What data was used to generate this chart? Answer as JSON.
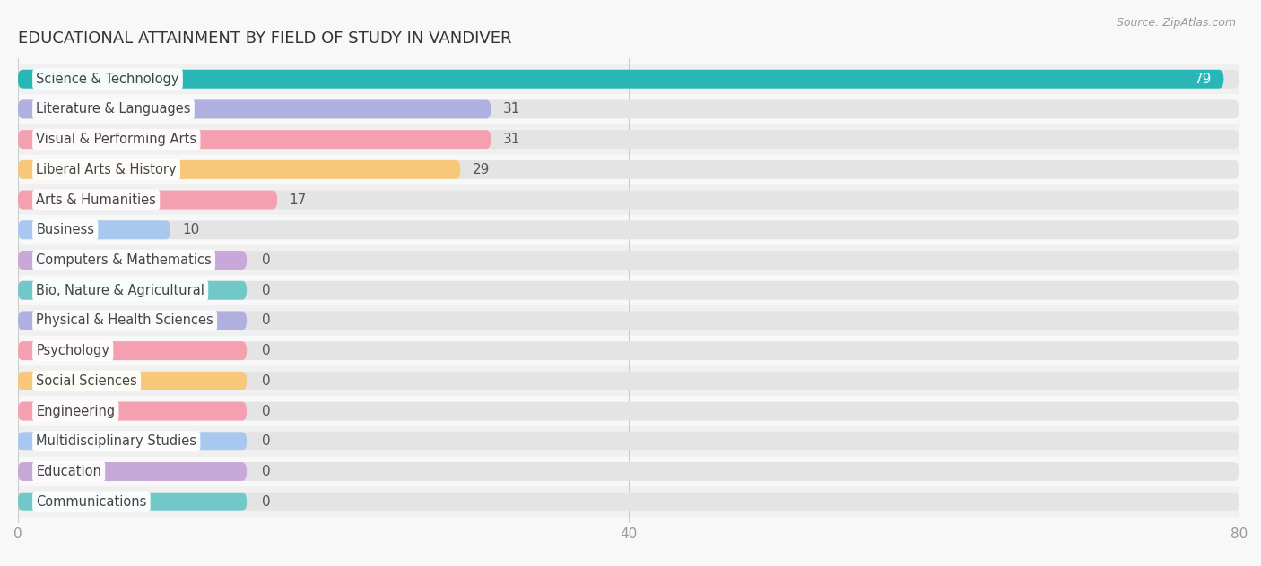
{
  "title": "EDUCATIONAL ATTAINMENT BY FIELD OF STUDY IN VANDIVER",
  "source": "Source: ZipAtlas.com",
  "categories": [
    "Science & Technology",
    "Literature & Languages",
    "Visual & Performing Arts",
    "Liberal Arts & History",
    "Arts & Humanities",
    "Business",
    "Computers & Mathematics",
    "Bio, Nature & Agricultural",
    "Physical & Health Sciences",
    "Psychology",
    "Social Sciences",
    "Engineering",
    "Multidisciplinary Studies",
    "Education",
    "Communications"
  ],
  "values": [
    79,
    31,
    31,
    29,
    17,
    10,
    0,
    0,
    0,
    0,
    0,
    0,
    0,
    0,
    0
  ],
  "bar_colors": [
    "#29b6b6",
    "#b0b0e0",
    "#f4a0b0",
    "#f8c87a",
    "#f4a0b0",
    "#a8c8f0",
    "#c8a8d8",
    "#70c8c8",
    "#b0b0e0",
    "#f4a0b0",
    "#f8c87a",
    "#f4a0b0",
    "#a8c8f0",
    "#c8a8d8",
    "#70c8c8"
  ],
  "xlim": [
    0,
    80
  ],
  "xticks": [
    0,
    40,
    80
  ],
  "background_color": "#f8f8f8",
  "bar_bg_color": "#e4e4e4",
  "title_fontsize": 13,
  "tick_fontsize": 11,
  "label_fontsize": 10.5,
  "value_fontsize": 11
}
